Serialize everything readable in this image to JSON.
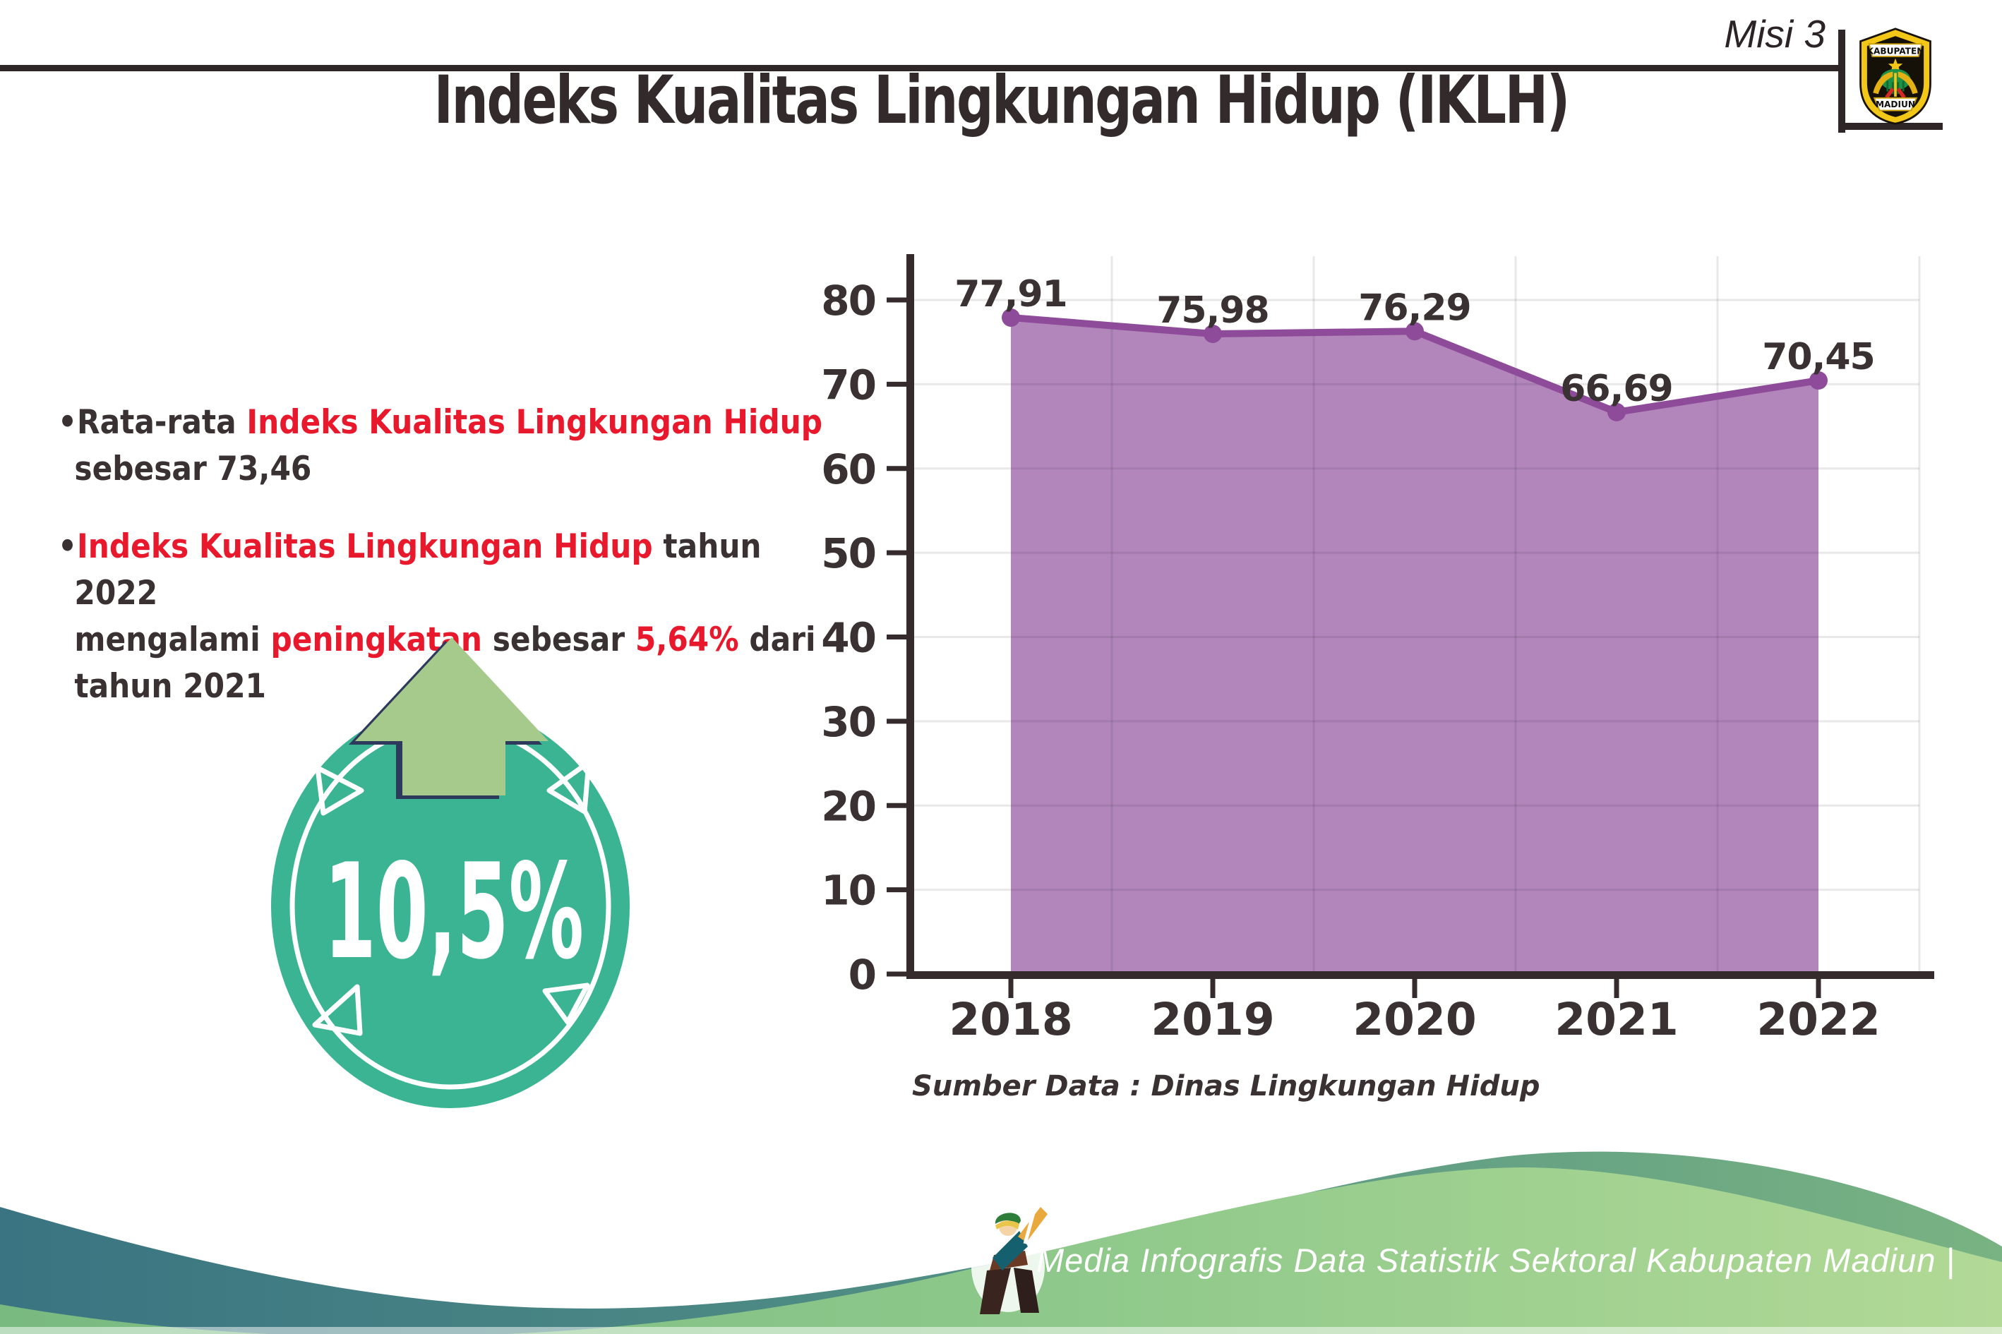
{
  "header": {
    "misi_label": "Misi 3",
    "logo": {
      "top_text": "KABUPATEN",
      "bottom_text": "MADIUN"
    }
  },
  "title": "Indeks Kualitas Lingkungan Hidup (IKLH)",
  "colors": {
    "dark_text": "#3a3133",
    "red_accent": "#e8192c",
    "rule": "#2f2627",
    "badge_teal": "#3ab493",
    "arrow_green": "#a6c98c",
    "arrow_outline_navy": "#2e3a5c",
    "area_fill": "#b286bb",
    "line_purple": "#8e4b99"
  },
  "bullets": [
    {
      "lines": [
        [
          {
            "text": "Rata-rata ",
            "red": false
          },
          {
            "text": "Indeks Kualitas Lingkungan Hidup",
            "red": true
          }
        ],
        [
          {
            "text": "sebesar 73,46",
            "red": false
          }
        ]
      ]
    },
    {
      "lines": [
        [
          {
            "text": "Indeks Kualitas Lingkungan Hidup",
            "red": true
          },
          {
            "text": " tahun 2022",
            "red": false
          }
        ],
        [
          {
            "text": "mengalami ",
            "red": false
          },
          {
            "text": "peningkatan",
            "red": true
          },
          {
            "text": " sebesar ",
            "red": false
          },
          {
            "text": "5,64%",
            "red": true
          },
          {
            "text": " dari",
            "red": false
          }
        ],
        [
          {
            "text": "tahun 2021",
            "red": false
          }
        ]
      ]
    }
  ],
  "badge": {
    "value_label": "10,5%"
  },
  "chart_data": {
    "type": "area",
    "categories": [
      "2018",
      "2019",
      "2020",
      "2021",
      "2022"
    ],
    "values": [
      77.91,
      75.98,
      76.29,
      66.69,
      70.45
    ],
    "data_labels": [
      "77,91",
      "75,98",
      "76,29",
      "66,69",
      "70,45"
    ],
    "y_ticks": [
      0,
      10,
      20,
      30,
      40,
      50,
      60,
      70,
      80
    ],
    "ylim": [
      0,
      80
    ],
    "grid": true,
    "legend": "none",
    "title": "",
    "xlabel": "",
    "ylabel": "",
    "source": "Sumber Data : Dinas Lingkungan Hidup",
    "fill_color": "#b286bb",
    "line_color": "#8e4b99",
    "axis_color": "#352b2d",
    "label_color": "#3a3133"
  },
  "footer": {
    "credit": "Media Infografis Data Statistik Sektoral Kabupaten Madiun |"
  }
}
